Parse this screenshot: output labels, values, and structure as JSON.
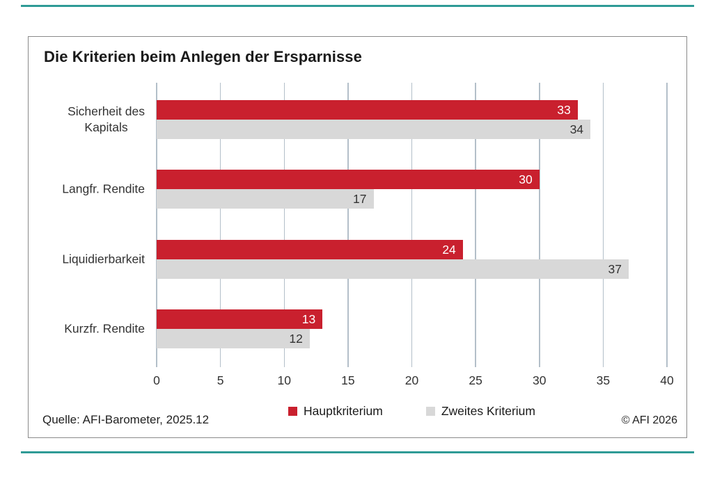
{
  "brand": {
    "rule_color": "#2F9B96"
  },
  "footer": {
    "source": "Quelle: AFI-Barometer, 2025.12",
    "copyright": "© AFI 2026"
  },
  "legend": {
    "items": [
      {
        "label": "Hauptkriterium",
        "color": "#C9202E"
      },
      {
        "label": "Zweites Kriterium",
        "color": "#D8D8D8"
      }
    ]
  },
  "chart_data": {
    "type": "bar",
    "orientation": "horizontal",
    "title": "Die Kriterien beim Anlegen der Ersparnisse",
    "categories": [
      "Sicherheit des\nKapitals",
      "Langfr. Rendite",
      "Liquidierbarkeit",
      "Kurzfr. Rendite"
    ],
    "series": [
      {
        "name": "Hauptkriterium",
        "color": "#C9202E",
        "value_label_color": "#FFFFFF",
        "values": [
          33,
          30,
          24,
          13
        ]
      },
      {
        "name": "Zweites Kriterium",
        "color": "#D8D8D8",
        "value_label_color": "#333333",
        "values": [
          34,
          17,
          37,
          12
        ]
      }
    ],
    "xlim": [
      0,
      40
    ],
    "xticks": [
      0,
      5,
      10,
      15,
      20,
      25,
      30,
      35,
      40
    ],
    "gridlines": "vertical",
    "gridline_color": "#B3BFC9",
    "frame_border_color": "#8A8A8A",
    "text_color": "#333333",
    "legend_position": "bottom",
    "value_labels": "inside-end"
  }
}
